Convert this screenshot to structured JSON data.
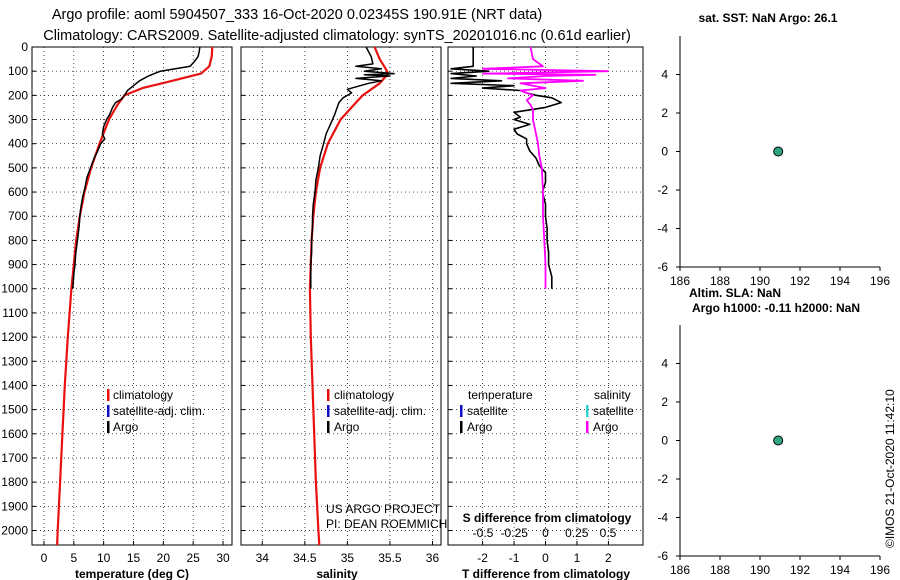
{
  "figure": {
    "title_line1": "Argo profile: aoml 5904507_333 16-Oct-2020 0.02345S 190.91E (NRT data)",
    "title_line2": "Climatology: CARS2009. Satellite-adjusted climatology: synTS_20201016.nc (0.61d earlier)",
    "credit_line1": "US ARGO PROJECT",
    "credit_line2": "PI: DEAN ROEMMICH",
    "timestamp": "©IMOS 21-Oct-2020 11:42:10"
  },
  "colors": {
    "climatology": "#e8110f",
    "satellite": "#1010c8",
    "argo": "#000000",
    "sat_salinity": "#30d0d0",
    "salinity_diff": "#ff00ff",
    "marker_fill": "#2fa583"
  },
  "depth_axis": {
    "ticks": [
      0,
      100,
      200,
      300,
      400,
      500,
      600,
      700,
      800,
      900,
      1000,
      1100,
      1200,
      1300,
      1400,
      1500,
      1600,
      1700,
      1800,
      1900,
      2000
    ],
    "range": [
      0,
      2060
    ]
  },
  "legends": {
    "clim_label": "climatology",
    "sat_label": "satellite-adj. clim.",
    "argo_label": "Argo",
    "diff_temp_header": "temperature",
    "diff_sal_header": "salinity",
    "diff_sat_label": "satellite",
    "diff_argo_label": "Argo"
  },
  "chart_data": [
    {
      "type": "line",
      "name": "temperature",
      "xlabel": "temperature (deg C)",
      "ylabel": "depth",
      "xlim": [
        -2,
        31.5
      ],
      "ylim": [
        2060,
        0
      ],
      "xticks": [
        0,
        5,
        10,
        15,
        20,
        25,
        30
      ],
      "grid": true,
      "series": [
        {
          "name": "climatology",
          "depth": [
            0,
            40,
            80,
            110,
            140,
            170,
            200,
            240,
            300,
            400,
            500,
            600,
            700,
            800,
            900,
            1000,
            1200,
            1400,
            1600,
            1800,
            2000,
            2060
          ],
          "values": [
            28.2,
            28.1,
            27.7,
            26.3,
            21.5,
            16.5,
            13.5,
            12.3,
            10.9,
            9.3,
            7.9,
            6.8,
            6.0,
            5.4,
            5.0,
            4.6,
            4.0,
            3.5,
            3.1,
            2.7,
            2.3,
            2.2
          ]
        },
        {
          "name": "Argo",
          "depth": [
            0,
            20,
            40,
            60,
            80,
            90,
            100,
            110,
            120,
            140,
            160,
            180,
            200,
            215,
            230,
            250,
            280,
            300,
            330,
            360,
            380,
            400,
            430,
            460,
            500,
            540,
            580,
            620,
            660,
            700,
            740,
            780,
            820,
            860,
            900,
            940,
            980,
            1000
          ],
          "values": [
            26.1,
            26.0,
            25.8,
            25.2,
            24.5,
            22.0,
            19.5,
            18.5,
            17.5,
            16.0,
            15.0,
            14.0,
            13.5,
            13.0,
            12.0,
            11.5,
            11.0,
            10.5,
            10.0,
            9.8,
            10.2,
            9.5,
            9.0,
            8.4,
            7.8,
            7.2,
            6.9,
            6.5,
            6.2,
            6.0,
            5.9,
            5.7,
            5.5,
            5.3,
            5.2,
            5.0,
            4.9,
            4.8
          ]
        }
      ]
    },
    {
      "type": "line",
      "name": "salinity",
      "xlabel": "salinity",
      "ylabel": "depth",
      "xlim": [
        33.75,
        36.1
      ],
      "ylim": [
        2060,
        0
      ],
      "xticks": [
        34,
        34.5,
        35,
        35.5,
        36
      ],
      "grid": true,
      "series": [
        {
          "name": "climatology",
          "depth": [
            0,
            50,
            90,
            110,
            150,
            200,
            250,
            300,
            400,
            500,
            600,
            700,
            800,
            1000,
            1200,
            1400,
            1600,
            1800,
            2000,
            2060
          ],
          "values": [
            35.32,
            35.38,
            35.45,
            35.48,
            35.38,
            35.18,
            35.05,
            34.92,
            34.77,
            34.68,
            34.63,
            34.6,
            34.58,
            34.56,
            34.57,
            34.59,
            34.61,
            34.63,
            34.66,
            34.67
          ]
        },
        {
          "name": "Argo",
          "depth": [
            0,
            40,
            70,
            80,
            90,
            100,
            110,
            115,
            120,
            130,
            140,
            150,
            160,
            175,
            190,
            210,
            230,
            250,
            280,
            320,
            360,
            400,
            450,
            500,
            550,
            600,
            650,
            700,
            750,
            800,
            850,
            900,
            950,
            1000
          ],
          "values": [
            35.22,
            35.28,
            35.3,
            35.1,
            35.4,
            35.2,
            35.55,
            35.2,
            35.5,
            35.1,
            35.4,
            35.25,
            35.15,
            35.0,
            35.05,
            34.95,
            34.9,
            34.88,
            34.85,
            34.8,
            34.75,
            34.72,
            34.68,
            34.66,
            34.63,
            34.62,
            34.6,
            34.59,
            34.59,
            34.58,
            34.58,
            34.57,
            34.57,
            34.57
          ]
        }
      ]
    },
    {
      "type": "line",
      "name": "difference from climatology",
      "xlabel": "T difference from climatology",
      "x2label": "S difference from climatology",
      "ylabel": "depth",
      "xlim": [
        -3.1,
        3.1
      ],
      "ylim": [
        2060,
        0
      ],
      "xticks": [
        -2,
        -1,
        0,
        1,
        2
      ],
      "x2ticks": [
        -0.5,
        -0.25,
        0,
        0.25,
        0.5
      ],
      "grid": true,
      "series": [
        {
          "name": "temperature Argo",
          "depth": [
            0,
            80,
            90,
            100,
            110,
            120,
            130,
            140,
            150,
            160,
            170,
            180,
            190,
            200,
            210,
            230,
            250,
            270,
            290,
            300,
            320,
            340,
            360,
            380,
            400,
            430,
            460,
            490,
            520,
            560,
            600,
            650,
            700,
            750,
            800,
            850,
            900,
            950,
            1000
          ],
          "values": [
            -2.3,
            -2.3,
            -3.0,
            -1.8,
            -3.0,
            -2.2,
            -3.0,
            -1.4,
            -3.0,
            -1.0,
            -2.0,
            -0.8,
            -0.6,
            -0.3,
            0.2,
            0.5,
            0.0,
            -1.0,
            -0.8,
            -1.0,
            -0.5,
            -1.0,
            -0.9,
            -0.6,
            -0.6,
            -0.5,
            -0.3,
            -0.2,
            0.0,
            0.0,
            -0.1,
            0.0,
            0.0,
            0.05,
            0.05,
            0.1,
            0.1,
            0.2,
            0.2
          ]
        },
        {
          "name": "salinity Argo",
          "depth": [
            0,
            50,
            80,
            90,
            100,
            110,
            115,
            120,
            130,
            140,
            150,
            160,
            170,
            180,
            200,
            220,
            240,
            260,
            300,
            350,
            400,
            450,
            500,
            600,
            700,
            800,
            900,
            1000
          ],
          "values": [
            -0.12,
            -0.1,
            -0.02,
            -0.5,
            0.5,
            -0.5,
            0.4,
            0.0,
            -0.3,
            0.3,
            -0.2,
            -0.1,
            0.0,
            -0.2,
            -0.1,
            -0.15,
            -0.12,
            -0.1,
            -0.1,
            -0.08,
            -0.06,
            -0.05,
            -0.03,
            -0.02,
            -0.02,
            -0.01,
            0.0,
            0.0
          ]
        }
      ]
    },
    {
      "type": "scatter",
      "name": "sat SST panel",
      "title": "sat. SST: NaN Argo: 26.1",
      "xlim": [
        186,
        196
      ],
      "ylim": [
        -6,
        6
      ],
      "xticks": [
        186,
        188,
        190,
        192,
        194,
        196
      ],
      "yticks": [
        -6,
        -4,
        -2,
        0,
        2,
        4
      ],
      "points": [
        {
          "x": 190.91,
          "y": 0
        }
      ]
    },
    {
      "type": "scatter",
      "name": "altimetry panel",
      "title_line1": "Altim. SLA: NaN",
      "title_line2": "Argo h1000: -0.11 h2000: NaN",
      "xlim": [
        186,
        196
      ],
      "ylim": [
        -6,
        6
      ],
      "xticks": [
        186,
        188,
        190,
        192,
        194,
        196
      ],
      "yticks": [
        -6,
        -4,
        -2,
        0,
        2,
        4
      ],
      "points": [
        {
          "x": 190.91,
          "y": 0
        }
      ]
    }
  ]
}
